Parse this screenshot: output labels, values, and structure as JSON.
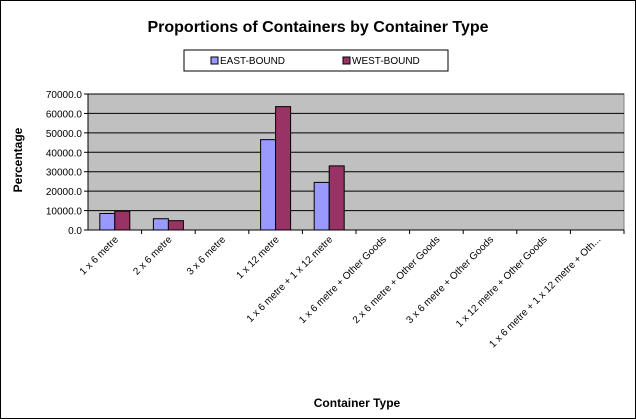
{
  "chart_data": {
    "type": "bar",
    "title": "Proportions of Containers by Container Type",
    "xlabel": "Container Type",
    "ylabel": "Percentage",
    "ylim": [
      0,
      70000
    ],
    "yticks": [
      "0.0",
      "10000.0",
      "20000.0",
      "30000.0",
      "40000.0",
      "50000.0",
      "60000.0",
      "70000.0"
    ],
    "grid": true,
    "legend": "top-center",
    "categories": [
      "1 x 6 metre",
      "2 x 6 metre",
      "3 x 6 metre",
      "1 x 12 metre",
      "1 x 6 metre + 1 x 12 metre",
      "1 x 6 metre + Other Goods",
      "2 x 6 metre + Other Goods",
      "3 x 6 metre + Other Goods",
      "1 x 12 metre + Other Goods",
      "1 x 6 metre + 1 x 12 metre + Oth..."
    ],
    "series": [
      {
        "name": "EAST-BOUND",
        "color": "#9999FF",
        "values": [
          8500,
          5800,
          0,
          46500,
          24500,
          0,
          0,
          0,
          0,
          0
        ]
      },
      {
        "name": "WEST-BOUND",
        "color": "#993366",
        "values": [
          9700,
          4800,
          0,
          63500,
          33000,
          0,
          0,
          0,
          0,
          0
        ]
      }
    ],
    "plot_background": "#C0C0C0"
  }
}
